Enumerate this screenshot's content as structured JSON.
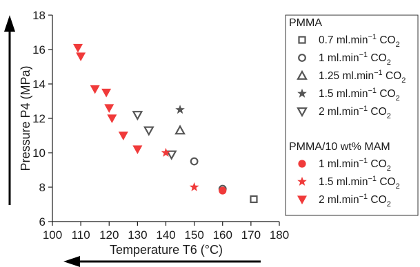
{
  "chart_data": {
    "type": "scatter",
    "xlabel": "Temperature T6 (°C)",
    "ylabel": "Pressure P4 (MPa)",
    "xlim": [
      100,
      180
    ],
    "ylim": [
      6,
      18
    ],
    "x_ticks": [
      "100",
      "110",
      "120",
      "130",
      "140",
      "150",
      "160",
      "170",
      "180"
    ],
    "y_ticks": [
      "6",
      "8",
      "10",
      "12",
      "14",
      "16",
      "18"
    ],
    "grid": false,
    "legend_position": "right",
    "legend_groups": [
      {
        "title": "PMMA",
        "series": [
          {
            "name_prefix": "0.7 ml.min",
            "sup": "−1",
            "mid": " CO",
            "sub": "2",
            "marker": "square-open",
            "color": "#555555",
            "points": [
              {
                "x": 171,
                "y": 7.3
              }
            ]
          },
          {
            "name_prefix": "1 ml.min",
            "sup": "−1",
            "mid": " CO",
            "sub": "2",
            "marker": "circle-open",
            "color": "#555555",
            "points": [
              {
                "x": 150,
                "y": 9.5
              },
              {
                "x": 160,
                "y": 7.9
              }
            ]
          },
          {
            "name_prefix": "1.25 ml.min",
            "sup": "−1",
            "mid": " CO",
            "sub": "2",
            "marker": "triangle-up-open",
            "color": "#555555",
            "points": [
              {
                "x": 145,
                "y": 11.3
              }
            ]
          },
          {
            "name_prefix": "1.5 ml.min",
            "sup": "−1",
            "mid": " CO",
            "sub": "2",
            "marker": "star-filled",
            "color": "#555555",
            "points": [
              {
                "x": 145,
                "y": 12.5
              }
            ]
          },
          {
            "name_prefix": "2 ml.min",
            "sup": "−1",
            "mid": " CO",
            "sub": "2",
            "marker": "triangle-down-open",
            "color": "#555555",
            "points": [
              {
                "x": 130,
                "y": 12.2
              },
              {
                "x": 134,
                "y": 11.3
              },
              {
                "x": 142,
                "y": 9.9
              }
            ]
          }
        ]
      },
      {
        "title": "PMMA/10 wt% MAM",
        "series": [
          {
            "name_prefix": "1 ml.min",
            "sup": "−1",
            "mid": " CO",
            "sub": "2",
            "marker": "circle-filled",
            "color": "#f03a3a",
            "points": [
              {
                "x": 160,
                "y": 7.8
              }
            ]
          },
          {
            "name_prefix": "1.5 ml.min",
            "sup": "−1",
            "mid": " CO",
            "sub": "2",
            "marker": "star-filled",
            "color": "#f03a3a",
            "points": [
              {
                "x": 140,
                "y": 10.0
              },
              {
                "x": 150,
                "y": 8.0
              }
            ]
          },
          {
            "name_prefix": "2 ml.min",
            "sup": "−1",
            "mid": " CO",
            "sub": "2",
            "marker": "triangle-down-filled",
            "color": "#f03a3a",
            "points": [
              {
                "x": 109,
                "y": 16.1
              },
              {
                "x": 110,
                "y": 15.6
              },
              {
                "x": 115,
                "y": 13.7
              },
              {
                "x": 119,
                "y": 13.5
              },
              {
                "x": 120,
                "y": 12.6
              },
              {
                "x": 121,
                "y": 12.0
              },
              {
                "x": 125,
                "y": 11.0
              },
              {
                "x": 130,
                "y": 10.2
              }
            ]
          }
        ]
      }
    ]
  }
}
